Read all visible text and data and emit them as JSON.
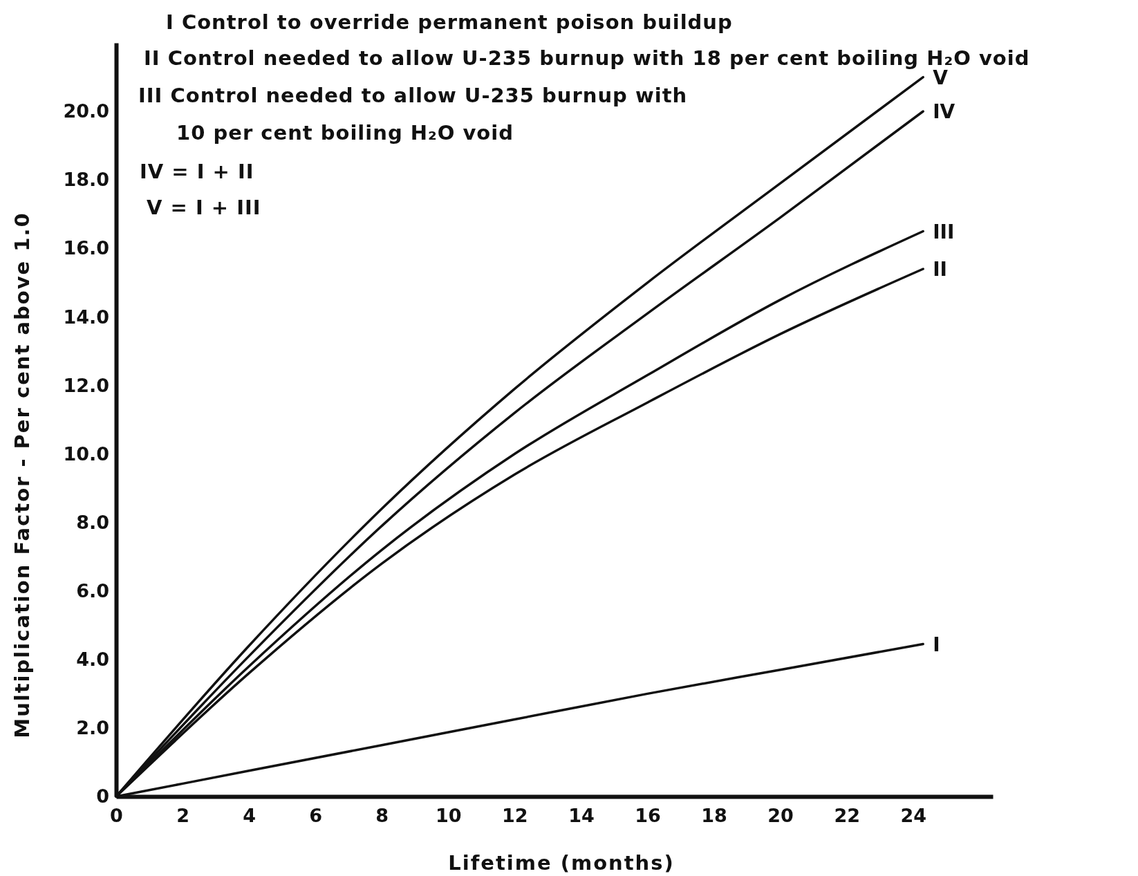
{
  "chart_data": {
    "type": "line",
    "xlabel": "Lifetime (months)",
    "ylabel": "Multiplication Factor - Per cent above 1.0",
    "xlim": [
      0,
      26.4
    ],
    "ylim": [
      0,
      22
    ],
    "xticks": [
      0,
      2,
      4,
      6,
      8,
      10,
      12,
      14,
      16,
      18,
      20,
      22,
      24
    ],
    "yticks": [
      {
        "value": 0,
        "label": "0"
      },
      {
        "value": 2,
        "label": "2.0"
      },
      {
        "value": 4,
        "label": "4.0"
      },
      {
        "value": 6,
        "label": "6.0"
      },
      {
        "value": 8,
        "label": "8.0"
      },
      {
        "value": 10,
        "label": "10.0"
      },
      {
        "value": 12,
        "label": "12.0"
      },
      {
        "value": 14,
        "label": "14.0"
      },
      {
        "value": 16,
        "label": "16.0"
      },
      {
        "value": 18,
        "label": "18.0"
      },
      {
        "value": 20,
        "label": "20.0"
      }
    ],
    "grid": false,
    "marker": "none",
    "line_style": "solid",
    "annotations": [
      "I Control to override permanent poison buildup",
      "II Control needed to allow U-235 burnup with 18 per cent boiling H₂O void",
      "III Control needed to allow U-235 burnup with",
      "10 per cent boiling H₂O void",
      "IV = I + II",
      "V = I + III"
    ],
    "series": [
      {
        "name": "I",
        "color": "#111111",
        "x": [
          0,
          4,
          8,
          12,
          16,
          20,
          24.3
        ],
        "values": [
          0,
          0.75,
          1.5,
          2.25,
          3.0,
          3.7,
          4.45
        ]
      },
      {
        "name": "II",
        "color": "#111111",
        "x": [
          0,
          4,
          8,
          12,
          16,
          20,
          24.3
        ],
        "values": [
          0,
          3.6,
          6.8,
          9.4,
          11.5,
          13.5,
          15.4
        ]
      },
      {
        "name": "III",
        "color": "#111111",
        "x": [
          0,
          4,
          8,
          12,
          16,
          20,
          24.3
        ],
        "values": [
          0,
          3.8,
          7.2,
          10.0,
          12.3,
          14.5,
          16.5
        ]
      },
      {
        "name": "IV",
        "color": "#111111",
        "x": [
          0,
          4,
          8,
          12,
          16,
          20,
          24.3
        ],
        "values": [
          0,
          4.1,
          7.9,
          11.2,
          14.1,
          16.9,
          20.0
        ]
      },
      {
        "name": "V",
        "color": "#111111",
        "x": [
          0,
          4,
          8,
          12,
          16,
          20,
          24.3
        ],
        "values": [
          0,
          4.4,
          8.4,
          11.9,
          15.0,
          17.9,
          21.0
        ]
      }
    ]
  }
}
